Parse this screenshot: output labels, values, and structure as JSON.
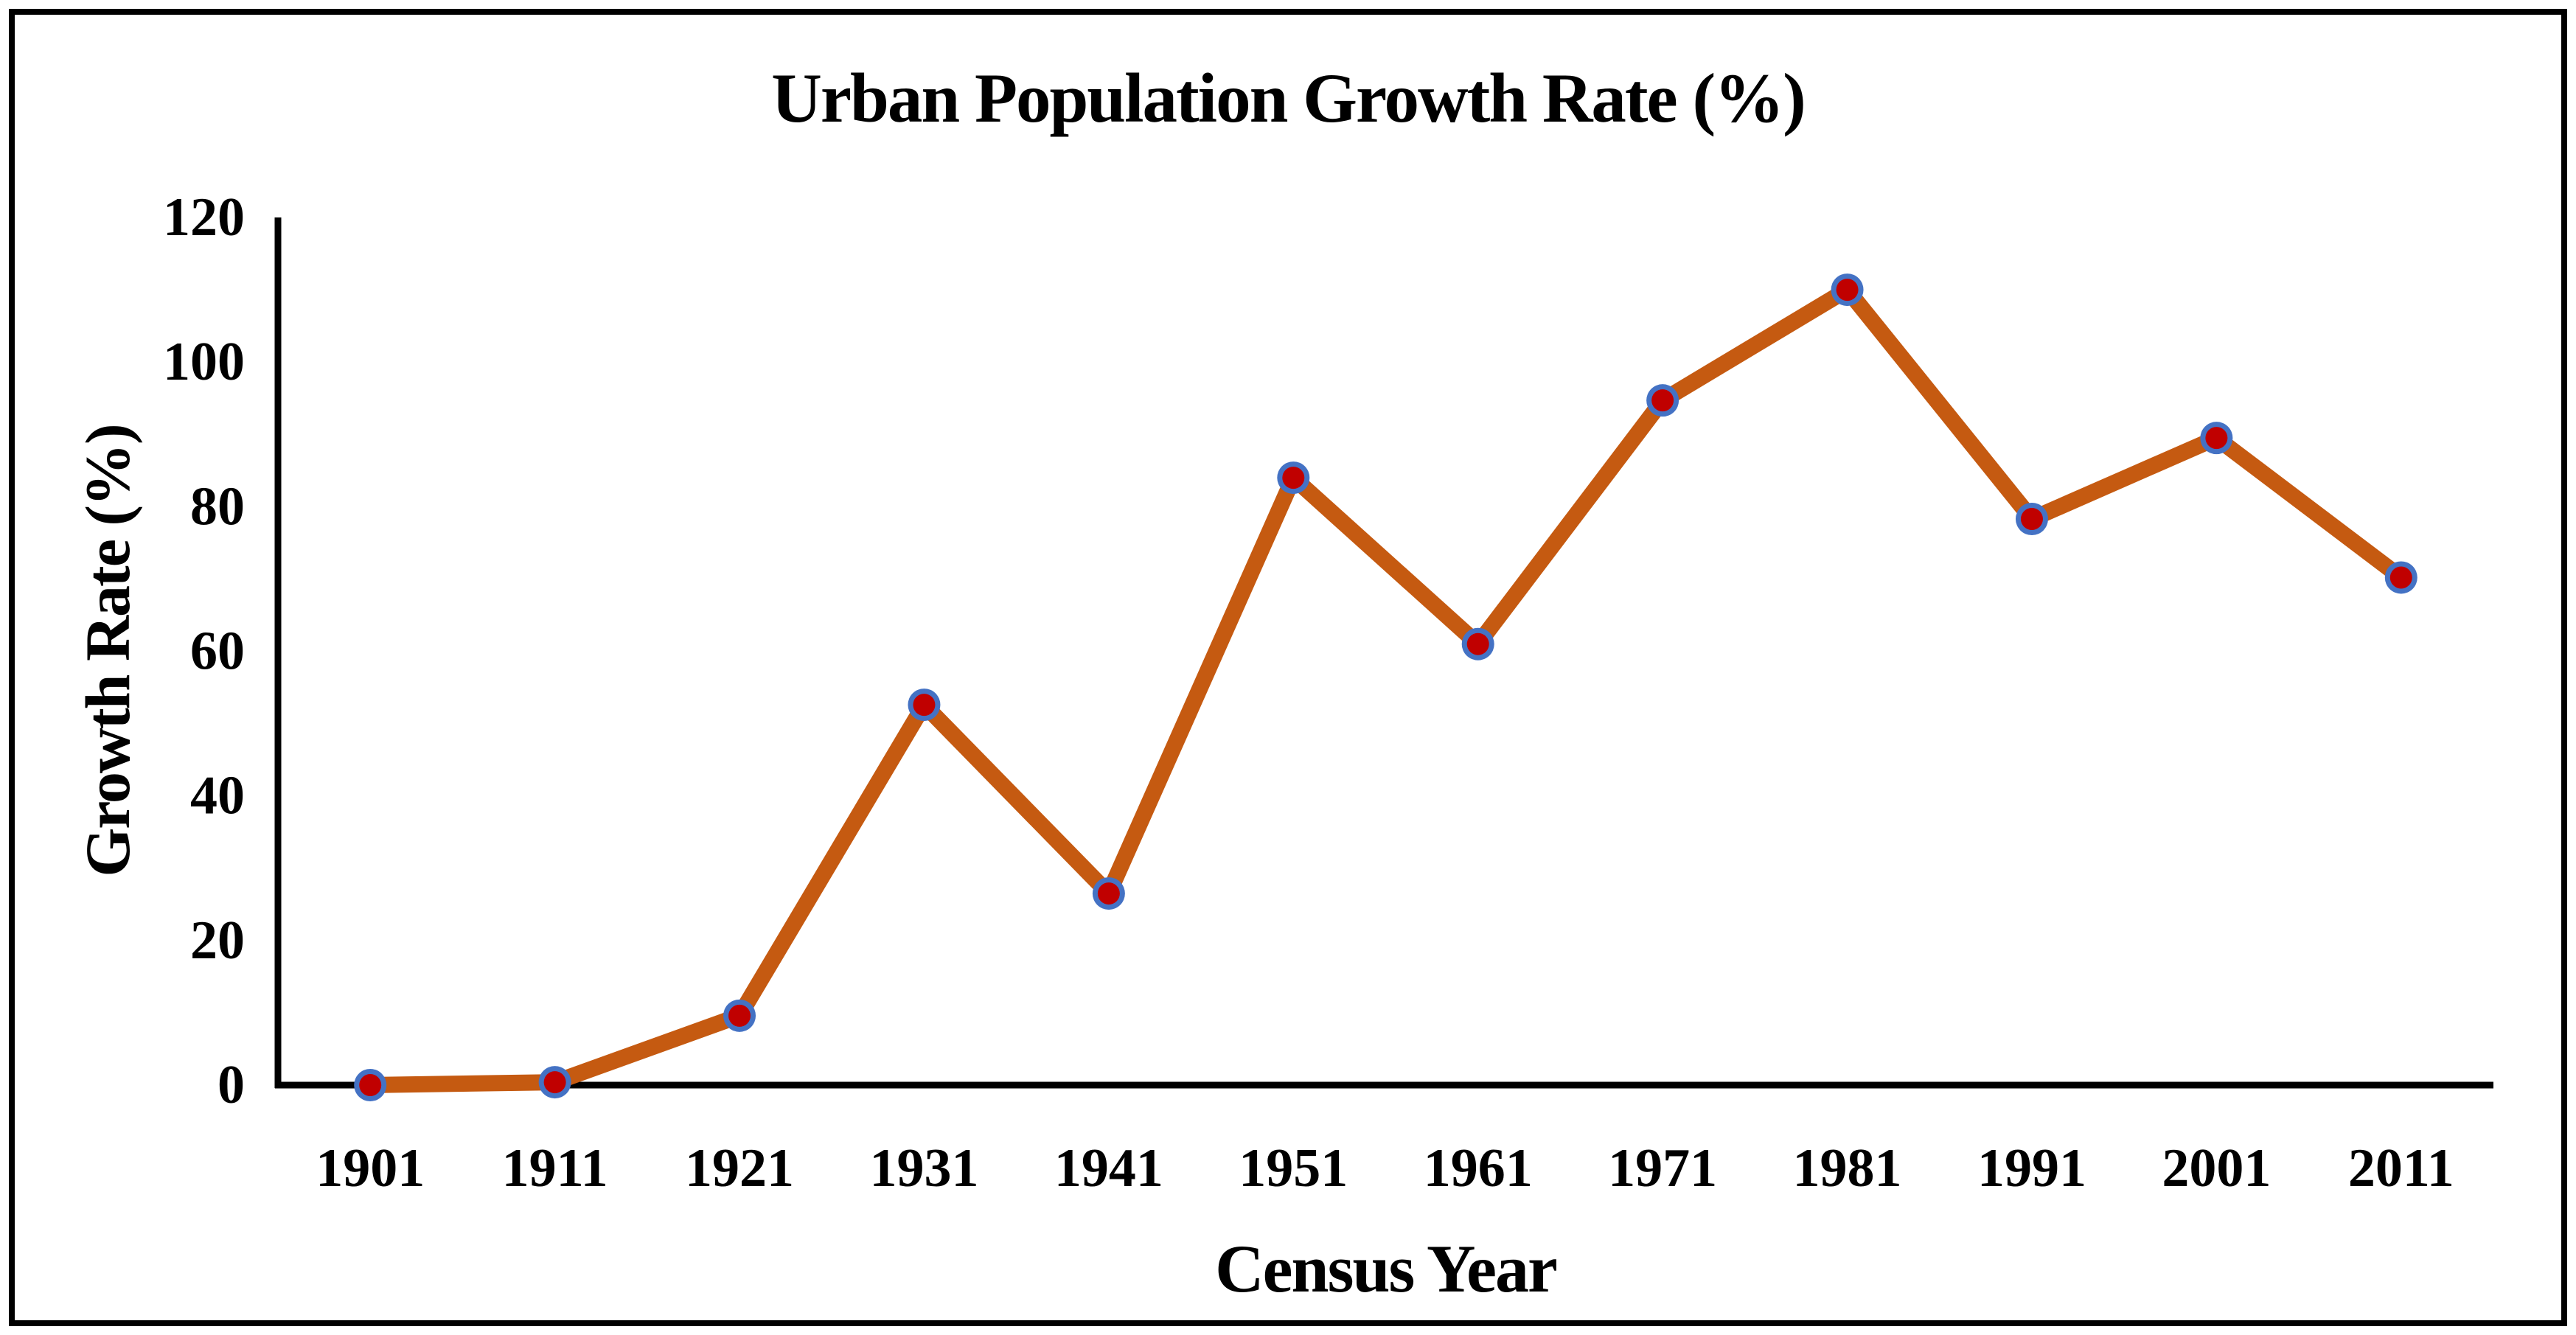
{
  "chart_data": {
    "type": "line",
    "title": "Urban Population Growth Rate (%)",
    "xlabel": "Census Year",
    "ylabel": "Growth Rate (%)",
    "categories": [
      "1901",
      "1911",
      "1921",
      "1931",
      "1941",
      "1951",
      "1961",
      "1971",
      "1981",
      "1991",
      "2001",
      "2011"
    ],
    "series": [
      {
        "name": "Urban Population Growth Rate (%)",
        "values": [
          0,
          0.4,
          9.6,
          52.6,
          26.5,
          84.0,
          61.0,
          94.7,
          110.0,
          78.3,
          89.5,
          70.2
        ]
      }
    ],
    "ylim": [
      0,
      120
    ],
    "yticks": [
      0,
      20,
      40,
      60,
      80,
      100,
      120
    ],
    "grid": false,
    "legend_position": "none",
    "colors": {
      "line": "#C55A11",
      "marker_fill": "#C00000",
      "marker_ring": "#4472C4",
      "axis": "#000000",
      "text": "#000000",
      "background": "#FFFFFF",
      "frame_border": "#000000"
    }
  }
}
